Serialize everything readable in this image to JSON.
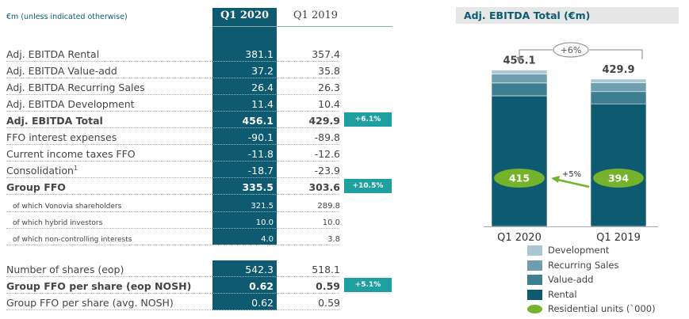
{
  "table": {
    "header_label": "€m (unless indicated otherwise)",
    "col_q1_2020": "Q1 2020",
    "col_q1_2019": "Q1 2019",
    "rows": [
      {
        "label": "Adj. EBITDA Rental",
        "q1_2020": "381.1",
        "q1_2019": "357.4",
        "growth": "",
        "style": "norm"
      },
      {
        "label": "Adj. EBITDA Value-add",
        "q1_2020": "37.2",
        "q1_2019": "35.8",
        "growth": "",
        "style": "norm"
      },
      {
        "label": "Adj. EBITDA Recurring Sales",
        "q1_2020": "26.4",
        "q1_2019": "26.3",
        "growth": "",
        "style": "norm"
      },
      {
        "label": "Adj. EBITDA Development",
        "q1_2020": "11.4",
        "q1_2019": "10.4",
        "growth": "",
        "style": "norm"
      },
      {
        "label": "Adj. EBITDA Total",
        "q1_2020": "456.1",
        "q1_2019": "429.9",
        "growth": "+6.1%",
        "style": "bold"
      },
      {
        "label": "FFO interest expenses",
        "q1_2020": "-90.1",
        "q1_2019": "-89.8",
        "growth": "",
        "style": "norm"
      },
      {
        "label": "Current income taxes FFO",
        "q1_2020": "-11.8",
        "q1_2019": "-12.6",
        "growth": "",
        "style": "norm"
      },
      {
        "label": "Consolidation",
        "footnote": "1",
        "q1_2020": "-18.7",
        "q1_2019": "-23.9",
        "growth": "",
        "style": "norm"
      },
      {
        "label": "Group FFO",
        "q1_2020": "335.5",
        "q1_2019": "303.6",
        "growth": "+10.5%",
        "style": "bold"
      },
      {
        "label": "of which Vonovia shareholders",
        "q1_2020": "321.5",
        "q1_2019": "289.8",
        "growth": "",
        "style": "small"
      },
      {
        "label": "of which hybrid investors",
        "q1_2020": "10.0",
        "q1_2019": "10.0",
        "growth": "",
        "style": "small"
      },
      {
        "label": "of which non-controlling interests",
        "q1_2020": "4.0",
        "q1_2019": "3.8",
        "growth": "",
        "style": "small"
      }
    ],
    "rows2": [
      {
        "label": "Number of shares (eop)",
        "q1_2020": "542.3",
        "q1_2019": "518.1",
        "growth": "",
        "style": "norm"
      },
      {
        "label": "Group FFO per share (eop NOSH)",
        "q1_2020": "0.62",
        "q1_2019": "0.59",
        "growth": "+5.1%",
        "style": "bold"
      },
      {
        "label": "Group FFO per share (avg. NOSH)",
        "q1_2020": "0.62",
        "q1_2019": "0.59",
        "growth": "",
        "style": "norm"
      }
    ]
  },
  "chart_data": {
    "type": "bar",
    "stacked": true,
    "title": "Adj. EBITDA Total (€m)",
    "categories": [
      "Q1 2020",
      "Q1 2019"
    ],
    "series": [
      {
        "name": "Rental",
        "values": [
          381.1,
          357.4
        ],
        "color": "#0e5a70"
      },
      {
        "name": "Value-add",
        "values": [
          37.2,
          35.8
        ],
        "color": "#3d7e90"
      },
      {
        "name": "Recurring Sales",
        "values": [
          26.4,
          26.3
        ],
        "color": "#6f9faf"
      },
      {
        "name": "Development",
        "values": [
          11.4,
          10.4
        ],
        "color": "#a9c8d2"
      }
    ],
    "totals": [
      "456.1",
      "429.9"
    ],
    "total_growth": "+6%",
    "residential_units": {
      "name": "Residential units (`000)",
      "values": [
        "415",
        "394"
      ],
      "growth": "+5%",
      "color": "#74b32b"
    },
    "legend_order": [
      "Development",
      "Recurring Sales",
      "Value-add",
      "Rental",
      "Residential units (`000)"
    ],
    "legend_position": "bottom"
  }
}
